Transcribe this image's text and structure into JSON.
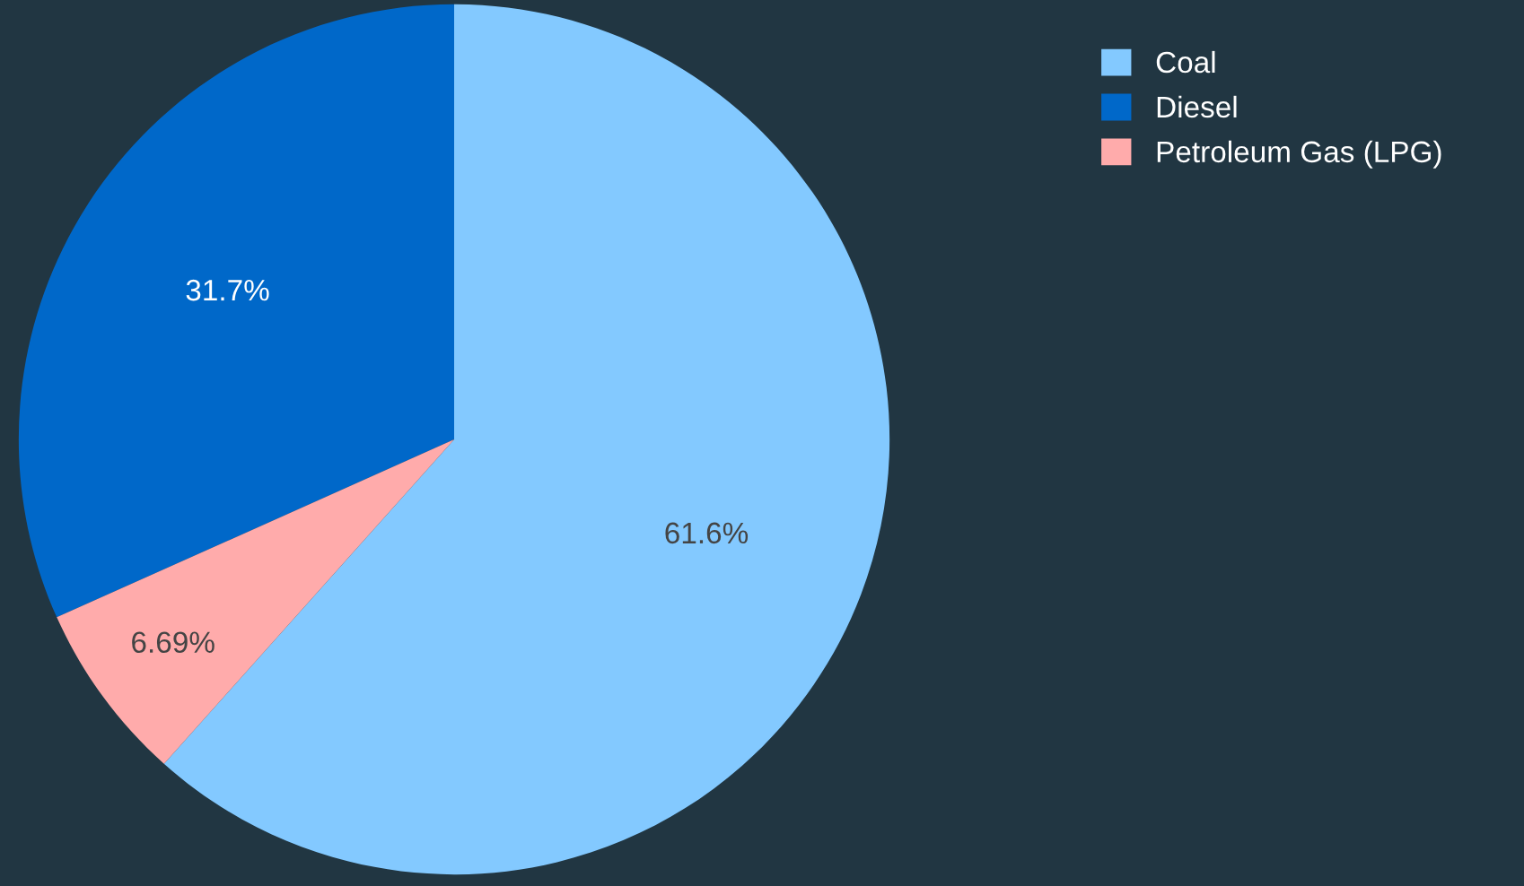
{
  "chart_data": {
    "type": "pie",
    "categories": [
      "Coal",
      "Diesel",
      "Petroleum Gas (LPG)"
    ],
    "values": [
      61.6,
      31.7,
      6.69
    ],
    "colors": [
      "#83c9ff",
      "#0068c9",
      "#ffabab"
    ],
    "value_labels": [
      "61.6%",
      "31.7%",
      "6.69%"
    ],
    "legend": "top right"
  }
}
